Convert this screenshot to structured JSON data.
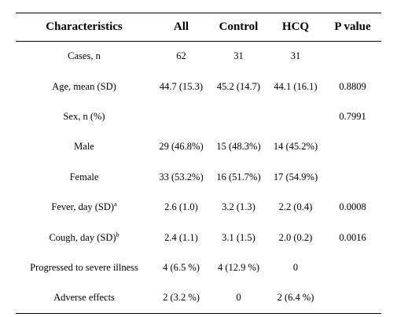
{
  "table": {
    "headers": [
      "Characteristics",
      "All",
      "Control",
      "HCQ",
      "P value"
    ],
    "rows": [
      {
        "label": "Cases, n",
        "sup": "",
        "all": "62",
        "control": "31",
        "hcq": "31",
        "p": ""
      },
      {
        "label": "Age, mean (SD)",
        "sup": "",
        "all": "44.7 (15.3)",
        "control": "45.2 (14.7)",
        "hcq": "44.1 (16.1)",
        "p": "0.8809"
      },
      {
        "label": "Sex, n (%)",
        "sup": "",
        "all": "",
        "control": "",
        "hcq": "",
        "p": "0.7991"
      },
      {
        "label": "Male",
        "sup": "",
        "all": "29 (46.8%)",
        "control": "15 (48.3%)",
        "hcq": "14 (45.2%)",
        "p": ""
      },
      {
        "label": "Female",
        "sup": "",
        "all": "33 (53.2%)",
        "control": "16 (51.7%)",
        "hcq": "17 (54.9%)",
        "p": ""
      },
      {
        "label": "Fever, day (SD)",
        "sup": "a",
        "all": "2.6 (1.0)",
        "control": "3.2 (1.3)",
        "hcq": "2.2 (0.4)",
        "p": "0.0008"
      },
      {
        "label": "Cough, day (SD)",
        "sup": "b",
        "all": "2.4 (1.1)",
        "control": "3.1 (1.5)",
        "hcq": "2.0 (0.2)",
        "p": "0.0016"
      },
      {
        "label": "Progressed to severe illness",
        "sup": "",
        "all": "4 (6.5 %)",
        "control": "4 (12.9 %)",
        "hcq": "0",
        "p": ""
      },
      {
        "label": "Adverse effects",
        "sup": "",
        "all": "2 (3.2 %)",
        "control": "0",
        "hcq": "2 (6.4 %)",
        "p": ""
      }
    ]
  }
}
